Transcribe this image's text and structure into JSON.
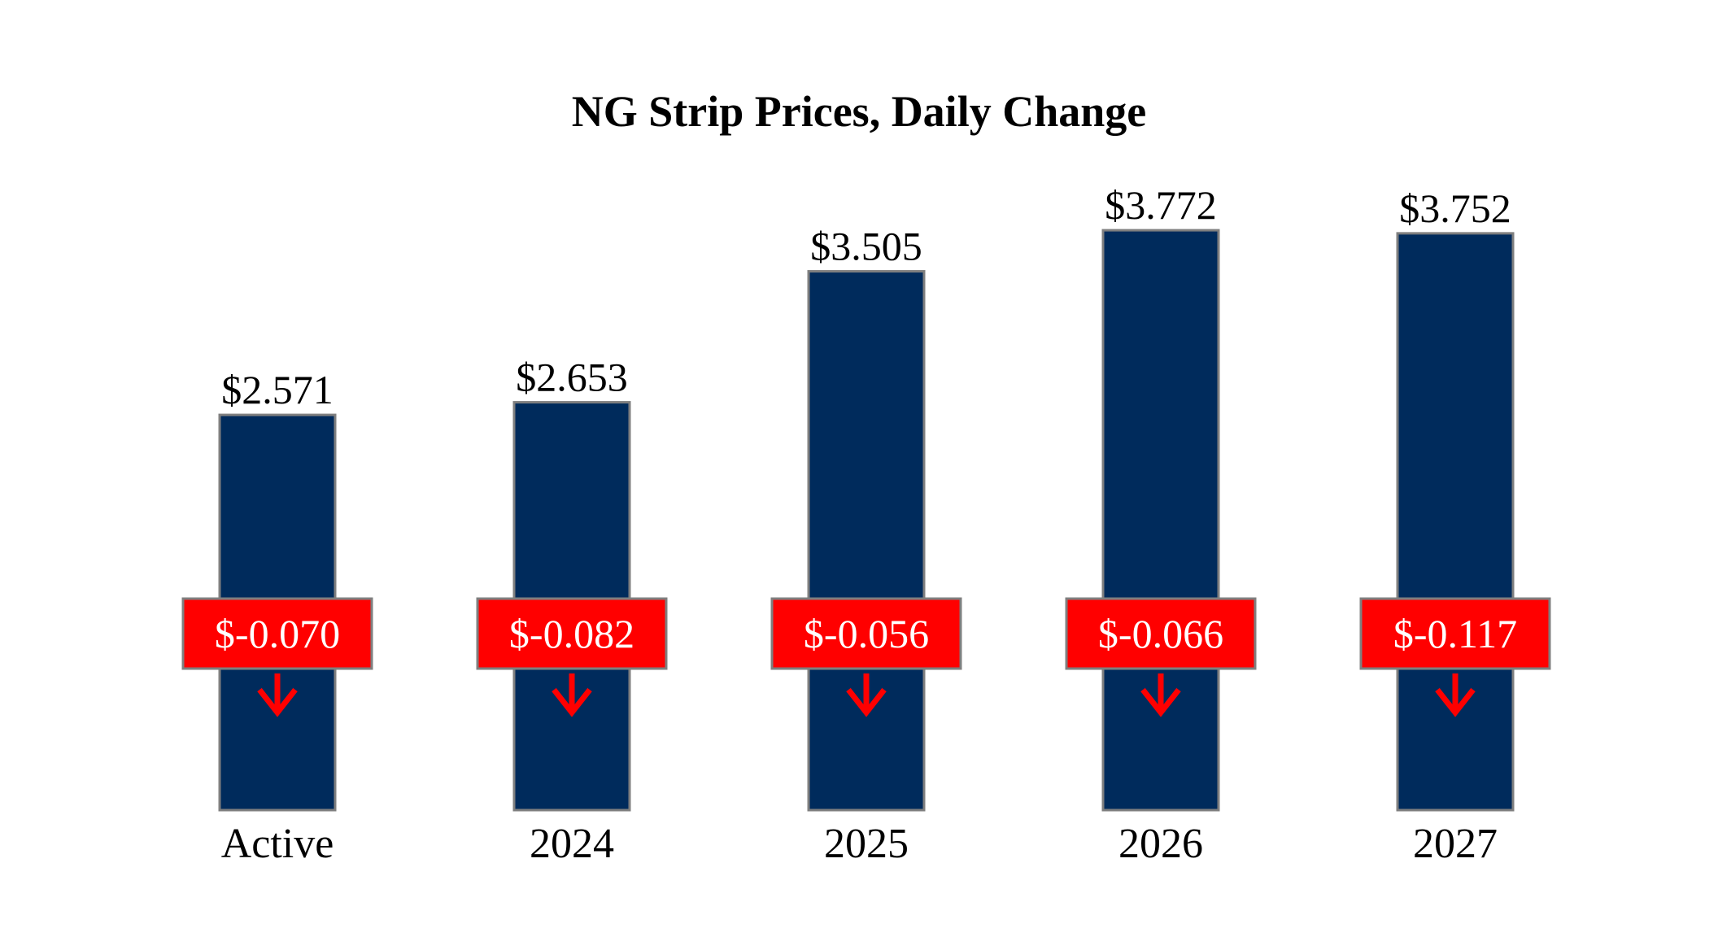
{
  "chart_data": {
    "type": "bar",
    "title": "NG Strip Prices, Daily Change",
    "categories": [
      "Active",
      "2024",
      "2025",
      "2026",
      "2027"
    ],
    "values": [
      2.571,
      2.653,
      3.505,
      3.772,
      3.752
    ],
    "value_labels": [
      "$2.571",
      "$2.653",
      "$3.505",
      "$3.772",
      "$3.752"
    ],
    "changes": [
      -0.07,
      -0.082,
      -0.056,
      -0.066,
      -0.117
    ],
    "change_labels": [
      "$-0.070",
      "$-0.082",
      "$-0.056",
      "$-0.066",
      "$-0.117"
    ],
    "change_direction": "down",
    "xlabel": "",
    "ylabel": "",
    "ylim": [
      0,
      4.2
    ],
    "grid": false,
    "legend": "none",
    "colors": {
      "bar": "#002B5C",
      "bar_border": "#7F7F7F",
      "change_box": "#FF0000",
      "change_box_border": "#7F7F7F",
      "change_text": "#FFFFFF",
      "arrow": "#FF0000"
    }
  }
}
